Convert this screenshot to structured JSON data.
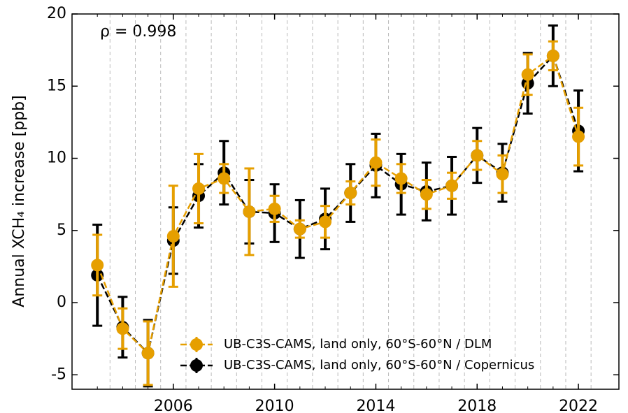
{
  "chart_data": {
    "type": "errorbar-line",
    "ylabel": "Annual XCH₄ increase [ppb]",
    "annotation": "ρ = 0.998",
    "x": [
      2003,
      2004,
      2005,
      2006,
      2007,
      2008,
      2009,
      2010,
      2011,
      2012,
      2013,
      2014,
      2015,
      2016,
      2017,
      2018,
      2019,
      2020,
      2021,
      2022
    ],
    "series": [
      {
        "name": "UB-C3S-CAMS, land only, 60°S-60°N / DLM",
        "color": "#e69f00",
        "values": [
          2.6,
          -1.8,
          -3.5,
          4.6,
          7.9,
          8.6,
          6.3,
          6.5,
          5.1,
          5.6,
          7.6,
          9.7,
          8.6,
          7.5,
          8.1,
          10.2,
          8.9,
          15.8,
          17.1,
          11.5
        ],
        "errors": [
          2.1,
          1.4,
          2.2,
          3.5,
          2.4,
          1.0,
          3.0,
          0.9,
          0.6,
          1.1,
          0.8,
          1.6,
          1.0,
          1.0,
          0.9,
          1.0,
          1.3,
          1.4,
          1.0,
          2.0
        ]
      },
      {
        "name": "UB-C3S-CAMS, land only, 60°S-60°N / Copernicus",
        "color": "#000000",
        "values": [
          1.9,
          -1.7,
          -3.5,
          4.3,
          7.4,
          9.0,
          6.3,
          6.2,
          5.1,
          5.8,
          7.6,
          9.5,
          8.2,
          7.7,
          8.1,
          10.2,
          9.0,
          15.2,
          17.1,
          11.9
        ],
        "errors": [
          3.5,
          2.1,
          2.3,
          2.3,
          2.2,
          2.2,
          2.2,
          2.0,
          2.0,
          2.1,
          2.0,
          2.2,
          2.1,
          2.0,
          2.0,
          1.9,
          2.0,
          2.1,
          2.1,
          2.8
        ]
      }
    ],
    "xlim": [
      2002,
      2023.6
    ],
    "xticks": [
      2006,
      2010,
      2014,
      2018,
      2022
    ],
    "ylim": [
      -6,
      20
    ],
    "yticks": [
      -5,
      0,
      5,
      10,
      15,
      20
    ],
    "legend": "lower right"
  }
}
